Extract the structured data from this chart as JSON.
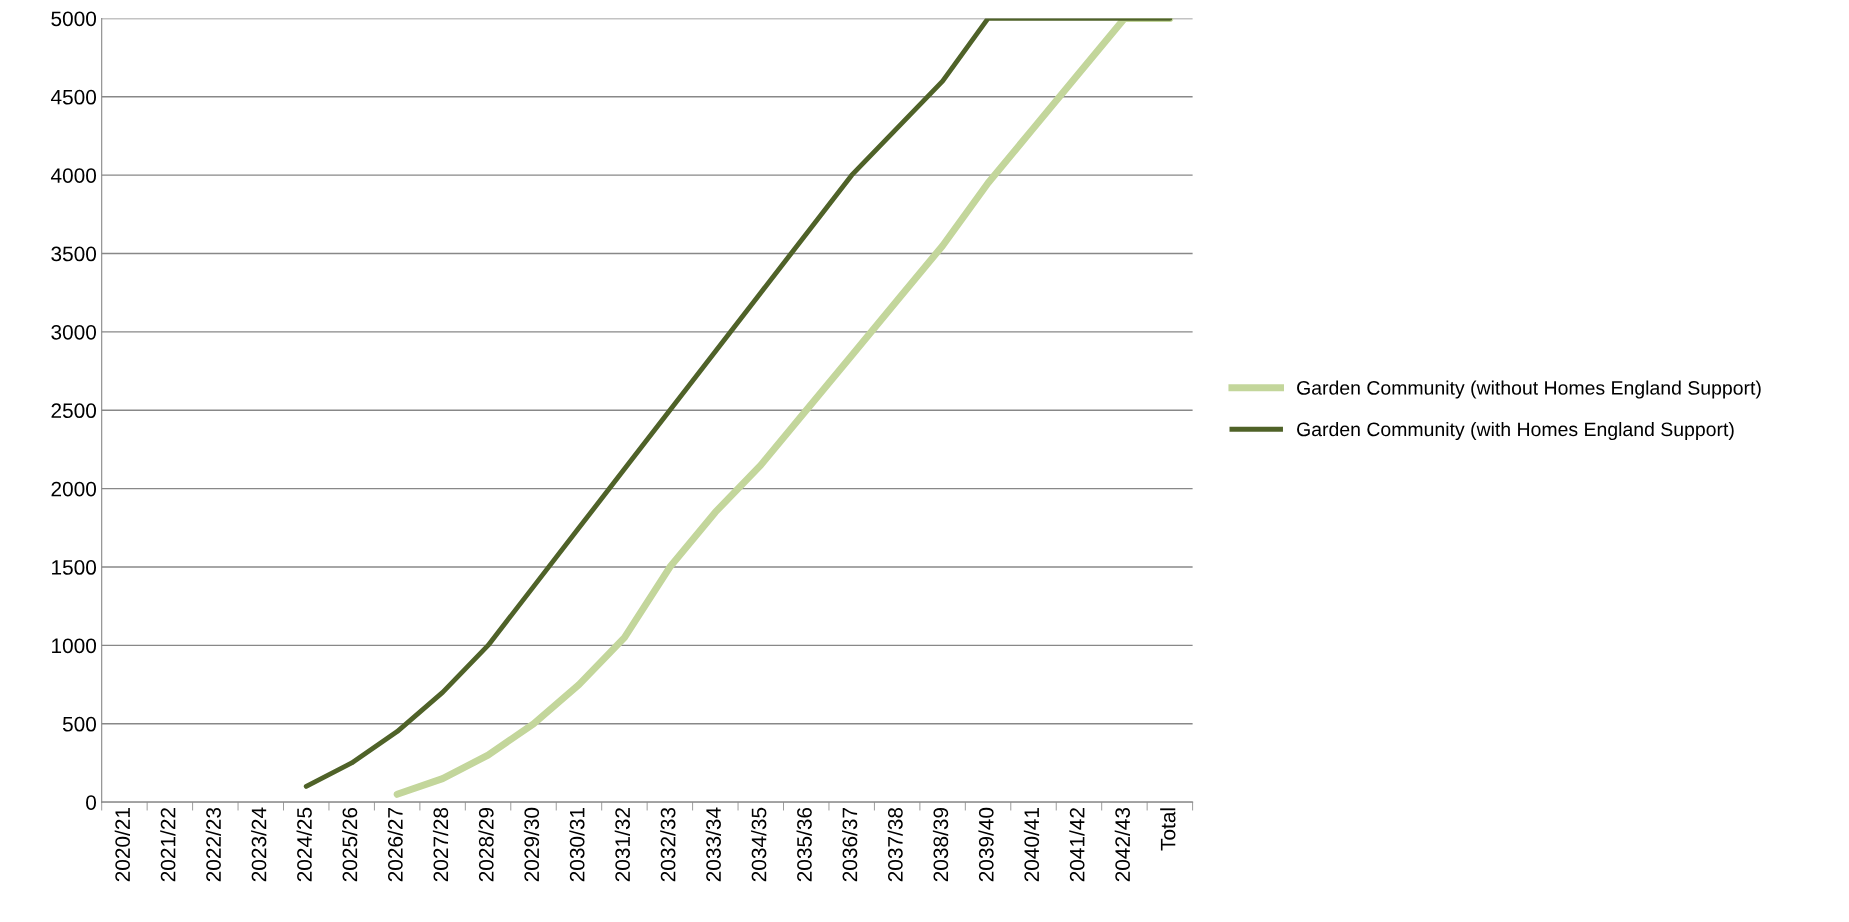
{
  "chart_data": {
    "type": "line",
    "categories": [
      "2020/21",
      "2021/22",
      "2022/23",
      "2023/24",
      "2024/25",
      "2025/26",
      "2026/27",
      "2027/28",
      "2028/29",
      "2029/30",
      "2030/31",
      "2031/32",
      "2032/33",
      "2033/34",
      "2034/35",
      "2035/36",
      "2036/37",
      "2037/38",
      "2038/39",
      "2039/40",
      "2040/41",
      "2041/42",
      "2042/43",
      "Total"
    ],
    "series": [
      {
        "name": "Garden Community (without Homes England Support)",
        "color": "#c3d69b",
        "values": [
          null,
          null,
          null,
          null,
          null,
          null,
          50,
          150,
          300,
          500,
          750,
          1050,
          1500,
          1850,
          2150,
          2500,
          2850,
          3200,
          3550,
          3950,
          4300,
          4650,
          5000,
          5000
        ]
      },
      {
        "name": "Garden Community (with Homes England Support)",
        "color": "#4f6228",
        "values": [
          null,
          null,
          null,
          null,
          100,
          250,
          450,
          700,
          1000,
          1375,
          1750,
          2125,
          2500,
          2875,
          3250,
          3625,
          4000,
          4300,
          4600,
          5000,
          5000,
          5000,
          5000,
          5000
        ]
      }
    ],
    "ylim": [
      0,
      5000
    ],
    "yticks": [
      0,
      500,
      1000,
      1500,
      2000,
      2500,
      3000,
      3500,
      4000,
      4500,
      5000
    ],
    "grid": "y",
    "legend": "right",
    "marker": "none",
    "line_style": "solid"
  }
}
